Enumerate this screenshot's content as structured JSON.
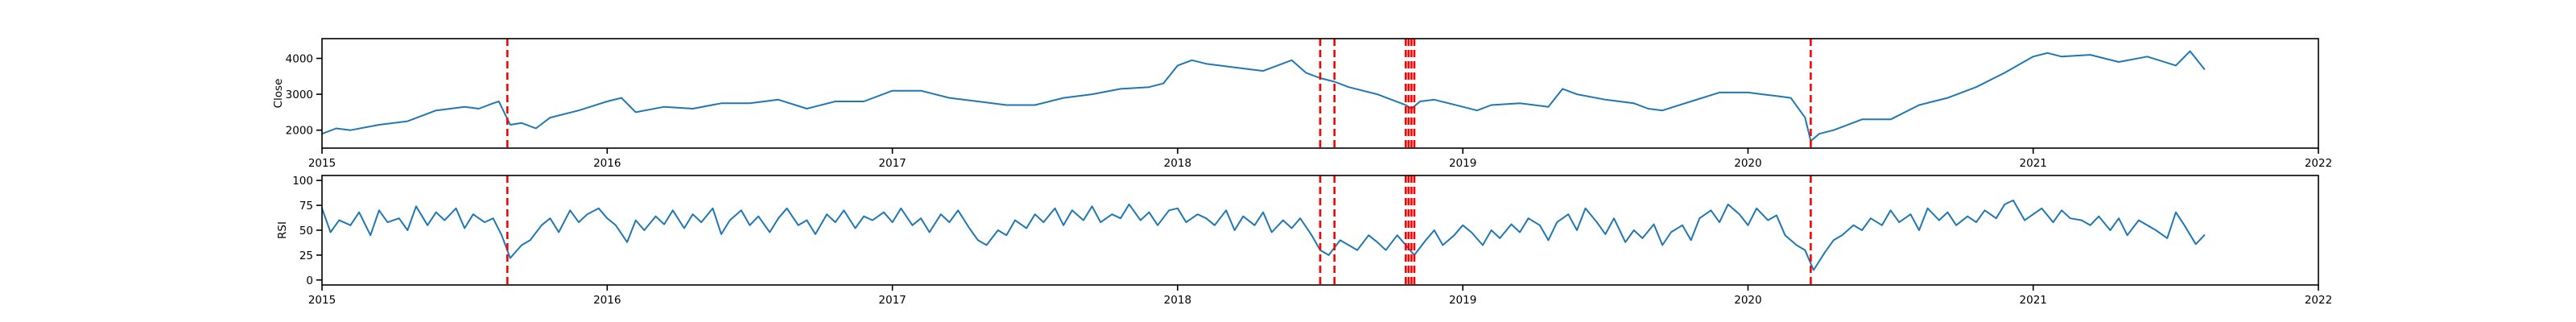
{
  "colors": {
    "series": "#1f77b4",
    "events": "#ff0000",
    "background": "#ffffff"
  },
  "chart_data": [
    {
      "type": "line",
      "title": "",
      "xlabel": "",
      "ylabel": "Close",
      "xlim": [
        2015.0,
        2022.0
      ],
      "ylim": [
        1500,
        4550
      ],
      "x_ticks": [
        2015,
        2016,
        2017,
        2018,
        2019,
        2020,
        2021,
        2022
      ],
      "x_tick_labels": [
        "2015",
        "2016",
        "2017",
        "2018",
        "2019",
        "2020",
        "2021",
        "2022"
      ],
      "y_ticks": [
        2000,
        3000,
        4000
      ],
      "y_tick_labels": [
        "2000",
        "3000",
        "4000"
      ],
      "grid": false,
      "legend": "none",
      "event_markers_x": [
        2015.65,
        2018.5,
        2018.55,
        2018.8,
        2018.81,
        2018.82,
        2018.83,
        2020.22
      ],
      "series": [
        {
          "x": [
            2015.0,
            2015.05,
            2015.1,
            2015.2,
            2015.3,
            2015.4,
            2015.5,
            2015.55,
            2015.6,
            2015.62,
            2015.66,
            2015.7,
            2015.75,
            2015.8,
            2015.9,
            2016.0,
            2016.05,
            2016.1,
            2016.2,
            2016.3,
            2016.4,
            2016.5,
            2016.6,
            2016.7,
            2016.8,
            2016.9,
            2017.0,
            2017.1,
            2017.2,
            2017.3,
            2017.4,
            2017.5,
            2017.6,
            2017.7,
            2017.8,
            2017.9,
            2017.95,
            2018.0,
            2018.05,
            2018.1,
            2018.2,
            2018.3,
            2018.35,
            2018.4,
            2018.45,
            2018.5,
            2018.55,
            2018.6,
            2018.7,
            2018.75,
            2018.8,
            2018.82,
            2018.85,
            2018.9,
            2019.0,
            2019.05,
            2019.1,
            2019.2,
            2019.3,
            2019.35,
            2019.4,
            2019.5,
            2019.6,
            2019.65,
            2019.7,
            2019.8,
            2019.9,
            2020.0,
            2020.05,
            2020.1,
            2020.15,
            2020.2,
            2020.22,
            2020.25,
            2020.3,
            2020.4,
            2020.5,
            2020.6,
            2020.7,
            2020.8,
            2020.9,
            2021.0,
            2021.05,
            2021.1,
            2021.2,
            2021.3,
            2021.4,
            2021.5,
            2021.55,
            2021.6
          ],
          "y": [
            1900,
            2050,
            2000,
            2150,
            2250,
            2550,
            2650,
            2600,
            2750,
            2800,
            2150,
            2200,
            2050,
            2350,
            2550,
            2800,
            2900,
            2500,
            2650,
            2600,
            2750,
            2750,
            2850,
            2600,
            2800,
            2800,
            3100,
            3100,
            2900,
            2800,
            2700,
            2700,
            2900,
            3000,
            3150,
            3200,
            3300,
            3800,
            3950,
            3850,
            3750,
            3650,
            3800,
            3950,
            3600,
            3450,
            3350,
            3200,
            3000,
            2850,
            2700,
            2600,
            2800,
            2850,
            2650,
            2550,
            2700,
            2750,
            2650,
            3150,
            3000,
            2850,
            2750,
            2600,
            2550,
            2800,
            3050,
            3050,
            3000,
            2950,
            2900,
            2350,
            1700,
            1900,
            2000,
            2300,
            2300,
            2700,
            2900,
            3200,
            3600,
            4050,
            4150,
            4050,
            4100,
            3900,
            4050,
            3800,
            4200,
            3700
          ]
        }
      ]
    },
    {
      "type": "line",
      "title": "",
      "xlabel": "",
      "ylabel": "RSI",
      "xlim": [
        2015.0,
        2022.0
      ],
      "ylim": [
        -5,
        105
      ],
      "x_ticks": [
        2015,
        2016,
        2017,
        2018,
        2019,
        2020,
        2021,
        2022
      ],
      "x_tick_labels": [
        "2015",
        "2016",
        "2017",
        "2018",
        "2019",
        "2020",
        "2021",
        "2022"
      ],
      "y_ticks": [
        0,
        25,
        50,
        75,
        100
      ],
      "y_tick_labels": [
        "0",
        "25",
        "50",
        "75",
        "100"
      ],
      "grid": false,
      "legend": "none",
      "event_markers_x": [
        2015.65,
        2018.5,
        2018.55,
        2018.8,
        2018.81,
        2018.82,
        2018.83,
        2020.22
      ],
      "series": [
        {
          "x": [
            2015.0,
            2015.03,
            2015.06,
            2015.1,
            2015.13,
            2015.17,
            2015.2,
            2015.23,
            2015.27,
            2015.3,
            2015.33,
            2015.37,
            2015.4,
            2015.43,
            2015.47,
            2015.5,
            2015.53,
            2015.57,
            2015.6,
            2015.63,
            2015.66,
            2015.7,
            2015.73,
            2015.77,
            2015.8,
            2015.83,
            2015.87,
            2015.9,
            2015.93,
            2015.97,
            2016.0,
            2016.03,
            2016.07,
            2016.1,
            2016.13,
            2016.17,
            2016.2,
            2016.23,
            2016.27,
            2016.3,
            2016.33,
            2016.37,
            2016.4,
            2016.43,
            2016.47,
            2016.5,
            2016.53,
            2016.57,
            2016.6,
            2016.63,
            2016.67,
            2016.7,
            2016.73,
            2016.77,
            2016.8,
            2016.83,
            2016.87,
            2016.9,
            2016.93,
            2016.97,
            2017.0,
            2017.03,
            2017.07,
            2017.1,
            2017.13,
            2017.17,
            2017.2,
            2017.23,
            2017.27,
            2017.3,
            2017.33,
            2017.37,
            2017.4,
            2017.43,
            2017.47,
            2017.5,
            2017.53,
            2017.57,
            2017.6,
            2017.63,
            2017.67,
            2017.7,
            2017.73,
            2017.77,
            2017.8,
            2017.83,
            2017.87,
            2017.9,
            2017.93,
            2017.97,
            2018.0,
            2018.03,
            2018.07,
            2018.1,
            2018.13,
            2018.17,
            2018.2,
            2018.23,
            2018.27,
            2018.3,
            2018.33,
            2018.37,
            2018.4,
            2018.43,
            2018.47,
            2018.5,
            2018.53,
            2018.57,
            2018.6,
            2018.63,
            2018.67,
            2018.7,
            2018.73,
            2018.77,
            2018.8,
            2018.83,
            2018.87,
            2018.9,
            2018.93,
            2018.97,
            2019.0,
            2019.03,
            2019.07,
            2019.1,
            2019.13,
            2019.17,
            2019.2,
            2019.23,
            2019.27,
            2019.3,
            2019.33,
            2019.37,
            2019.4,
            2019.43,
            2019.47,
            2019.5,
            2019.53,
            2019.57,
            2019.6,
            2019.63,
            2019.67,
            2019.7,
            2019.73,
            2019.77,
            2019.8,
            2019.83,
            2019.87,
            2019.9,
            2019.93,
            2019.97,
            2020.0,
            2020.03,
            2020.07,
            2020.1,
            2020.13,
            2020.17,
            2020.2,
            2020.23,
            2020.27,
            2020.3,
            2020.33,
            2020.37,
            2020.4,
            2020.43,
            2020.47,
            2020.5,
            2020.53,
            2020.57,
            2020.6,
            2020.63,
            2020.67,
            2020.7,
            2020.73,
            2020.77,
            2020.8,
            2020.83,
            2020.87,
            2020.9,
            2020.93,
            2020.97,
            2021.0,
            2021.03,
            2021.07,
            2021.1,
            2021.13,
            2021.17,
            2021.2,
            2021.23,
            2021.27,
            2021.3,
            2021.33,
            2021.37,
            2021.4,
            2021.43,
            2021.47,
            2021.5,
            2021.53,
            2021.57,
            2021.6
          ],
          "y": [
            72,
            48,
            60,
            55,
            68,
            45,
            70,
            58,
            62,
            50,
            74,
            55,
            68,
            60,
            72,
            52,
            66,
            58,
            62,
            45,
            22,
            35,
            40,
            55,
            62,
            48,
            70,
            58,
            66,
            72,
            62,
            55,
            38,
            60,
            50,
            64,
            56,
            70,
            52,
            66,
            58,
            72,
            46,
            60,
            70,
            55,
            64,
            48,
            62,
            72,
            55,
            60,
            46,
            66,
            58,
            70,
            52,
            64,
            60,
            68,
            58,
            72,
            55,
            62,
            48,
            66,
            58,
            70,
            52,
            40,
            35,
            50,
            45,
            60,
            52,
            66,
            58,
            72,
            55,
            70,
            60,
            74,
            58,
            66,
            62,
            76,
            60,
            68,
            55,
            70,
            72,
            58,
            66,
            62,
            55,
            70,
            50,
            64,
            55,
            68,
            48,
            60,
            52,
            62,
            45,
            30,
            25,
            40,
            35,
            30,
            45,
            38,
            30,
            45,
            35,
            25,
            40,
            50,
            35,
            45,
            55,
            48,
            35,
            50,
            42,
            56,
            48,
            62,
            55,
            40,
            58,
            66,
            50,
            72,
            58,
            46,
            62,
            38,
            50,
            42,
            56,
            35,
            48,
            55,
            40,
            62,
            70,
            58,
            76,
            66,
            55,
            72,
            60,
            65,
            45,
            35,
            30,
            10,
            28,
            40,
            45,
            55,
            50,
            62,
            55,
            70,
            58,
            66,
            50,
            72,
            60,
            68,
            55,
            64,
            58,
            70,
            62,
            76,
            80,
            60,
            66,
            72,
            58,
            70,
            62,
            60,
            55,
            64,
            50,
            62,
            45,
            60,
            55,
            50,
            42,
            68,
            55,
            36,
            45
          ]
        }
      ]
    }
  ]
}
